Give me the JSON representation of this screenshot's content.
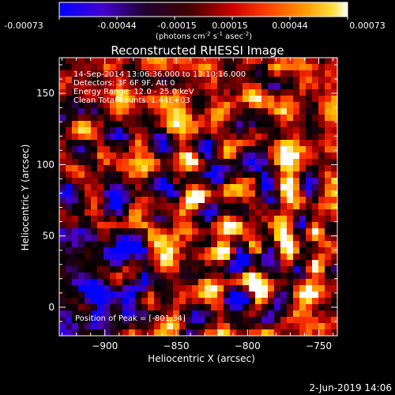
{
  "colorbar": {
    "ticks": [
      "-0.00073",
      "-0.00044",
      "-0.00015",
      "0.00015",
      "0.00044",
      "0.00073"
    ],
    "unit_text": "(photons cm",
    "unit_exp1": "-2",
    "unit_mid": " s",
    "unit_exp2": "-1",
    "unit_end": " asec",
    "unit_exp3": "-2",
    "unit_close": ")"
  },
  "chart_data": {
    "type": "heatmap",
    "title": "Reconstructed RHESSI Image",
    "xlabel": "Heliocentric X (arcsec)",
    "ylabel": "Heliocentric Y (arcsec)",
    "xlim": [
      -932,
      -737
    ],
    "ylim": [
      -20,
      175
    ],
    "x_ticks": [
      -900,
      -850,
      -800,
      -750
    ],
    "y_ticks": [
      0,
      50,
      100,
      150
    ],
    "x_tick_labels": [
      "−900",
      "−850",
      "−800",
      "−750"
    ],
    "y_tick_labels": [
      "0",
      "50",
      "100",
      "150"
    ],
    "value_range": [
      -0.00073,
      0.00073
    ],
    "colormap": [
      "#0000ff",
      "#4b00c4",
      "#20001a",
      "#000000",
      "#5a0000",
      "#b00000",
      "#ff3000",
      "#ff8a00",
      "#ffd200",
      "#ffffff"
    ],
    "peak": [
      -801,
      34
    ],
    "annotations": [
      "14-Sep-2014 13:06:36.000 to 13:10:16.000",
      "Detectors: 3F 6F 9F, Att 0",
      "Energy Range: 12.0 - 25.0 keV",
      "Clean    Total counts: 1.44E+03",
      "Position of Peak = [-801,34]"
    ]
  },
  "footer": {
    "timestamp": "2-Jun-2019 14:06"
  }
}
